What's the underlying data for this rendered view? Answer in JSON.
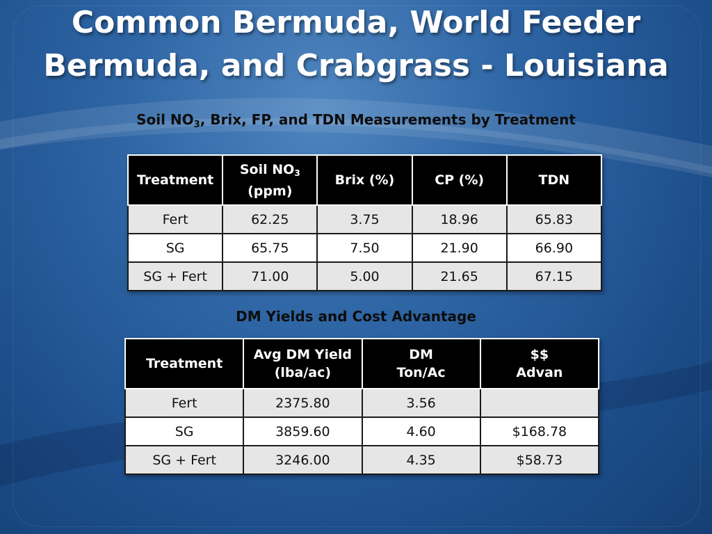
{
  "title": {
    "line1": "Common Bermuda, World Feeder",
    "line2": "Bermuda, and Crabgrass - Louisiana"
  },
  "table1": {
    "caption_pre": "Soil NO",
    "caption_sub": "3",
    "caption_post": ", Brix, FP, and TDN Measurements by Treatment",
    "headers": {
      "treatment": "Treatment",
      "soil_pre": "Soil NO",
      "soil_sub": "3",
      "soil_unit": "(ppm)",
      "brix": "Brix (%)",
      "cp": "CP (%)",
      "tdn": "TDN"
    },
    "rows": [
      [
        "Fert",
        "62.25",
        "3.75",
        "18.96",
        "65.83"
      ],
      [
        "SG",
        "65.75",
        "7.50",
        "21.90",
        "66.90"
      ],
      [
        "SG + Fert",
        "71.00",
        "5.00",
        "21.65",
        "67.15"
      ]
    ]
  },
  "table2": {
    "caption": "DM Yields and Cost Advantage",
    "headers": {
      "treatment": "Treatment",
      "yield_line1": "Avg DM Yield",
      "yield_line2": "(lba/ac)",
      "dm_line1": "DM",
      "dm_line2": "Ton/Ac",
      "adv_line1": "$$",
      "adv_line2": "Advan"
    },
    "rows": [
      [
        "Fert",
        "2375.80",
        "3.56",
        ""
      ],
      [
        "SG",
        "3859.60",
        "4.60",
        "$168.78"
      ],
      [
        "SG + Fert",
        "3246.00",
        "4.35",
        "$58.73"
      ]
    ]
  },
  "colors": {
    "background": "#2f66a5",
    "header_bg": "#000000",
    "header_text": "#ffffff",
    "row_alt": "#e6e6e6",
    "row": "#ffffff",
    "title_text": "#ffffff"
  }
}
